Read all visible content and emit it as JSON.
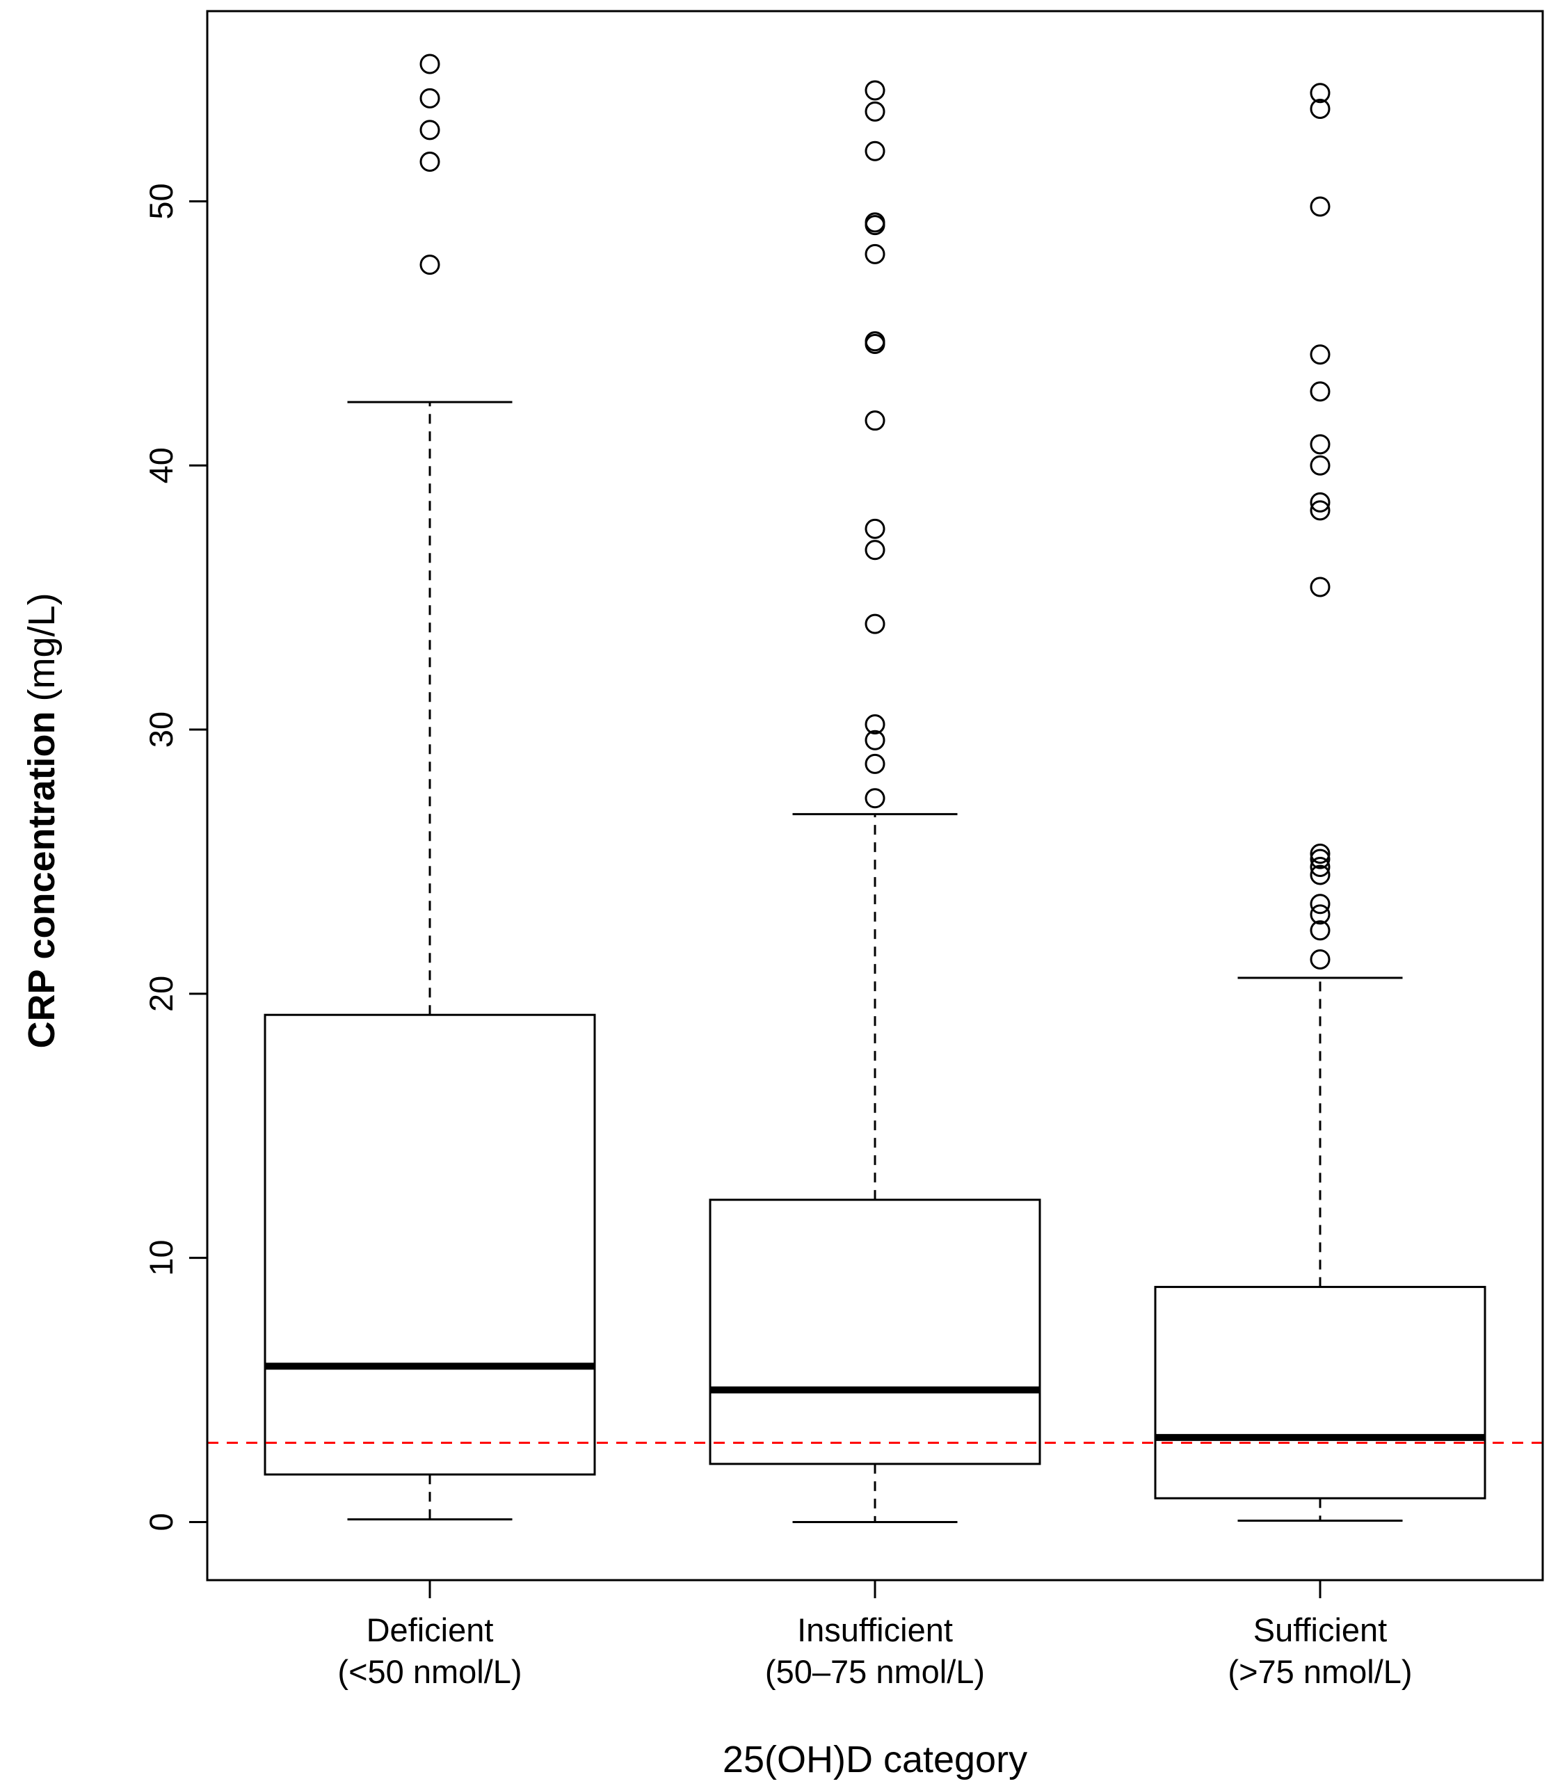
{
  "chart_data": {
    "type": "boxplot",
    "title": "",
    "xlabel": "25(OH)D category",
    "ylabel_bold": "CRP concentration",
    "ylabel_unit": "(mg/L)",
    "ylim": [
      -2.2,
      57.2
    ],
    "yticks": [
      0,
      10,
      20,
      30,
      40,
      50
    ],
    "reference_line": {
      "y": 3,
      "color": "#ff0000",
      "style": "dashed"
    },
    "colors": {
      "box": "#000000",
      "median": "#000000",
      "frame": "#000000",
      "fill": "#ffffff"
    },
    "categories": [
      {
        "name": "Deficient",
        "range": "(<50 nmol/L)",
        "whisker_low": 0.1,
        "q1": 1.8,
        "median": 5.9,
        "q3": 19.2,
        "whisker_high": 42.4,
        "outliers": [
          47.6,
          51.5,
          52.7,
          53.9,
          55.2
        ]
      },
      {
        "name": "Insufficient",
        "range": "(50–75 nmol/L)",
        "whisker_low": 0.0,
        "q1": 2.2,
        "median": 5.0,
        "q3": 12.2,
        "whisker_high": 26.8,
        "outliers": [
          27.4,
          28.7,
          29.6,
          30.2,
          34.0,
          36.8,
          37.6,
          41.7,
          44.6,
          44.7,
          48.0,
          49.1,
          49.2,
          51.9,
          53.4,
          54.2
        ]
      },
      {
        "name": "Sufficient",
        "range": "(>75 nmol/L)",
        "whisker_low": 0.05,
        "q1": 0.9,
        "median": 3.2,
        "q3": 8.9,
        "whisker_high": 20.6,
        "outliers": [
          21.3,
          22.4,
          23.0,
          23.4,
          24.5,
          24.8,
          25.1,
          25.3,
          35.4,
          38.3,
          38.6,
          40.0,
          40.8,
          42.8,
          44.2,
          49.8,
          53.5,
          54.1
        ]
      }
    ]
  }
}
